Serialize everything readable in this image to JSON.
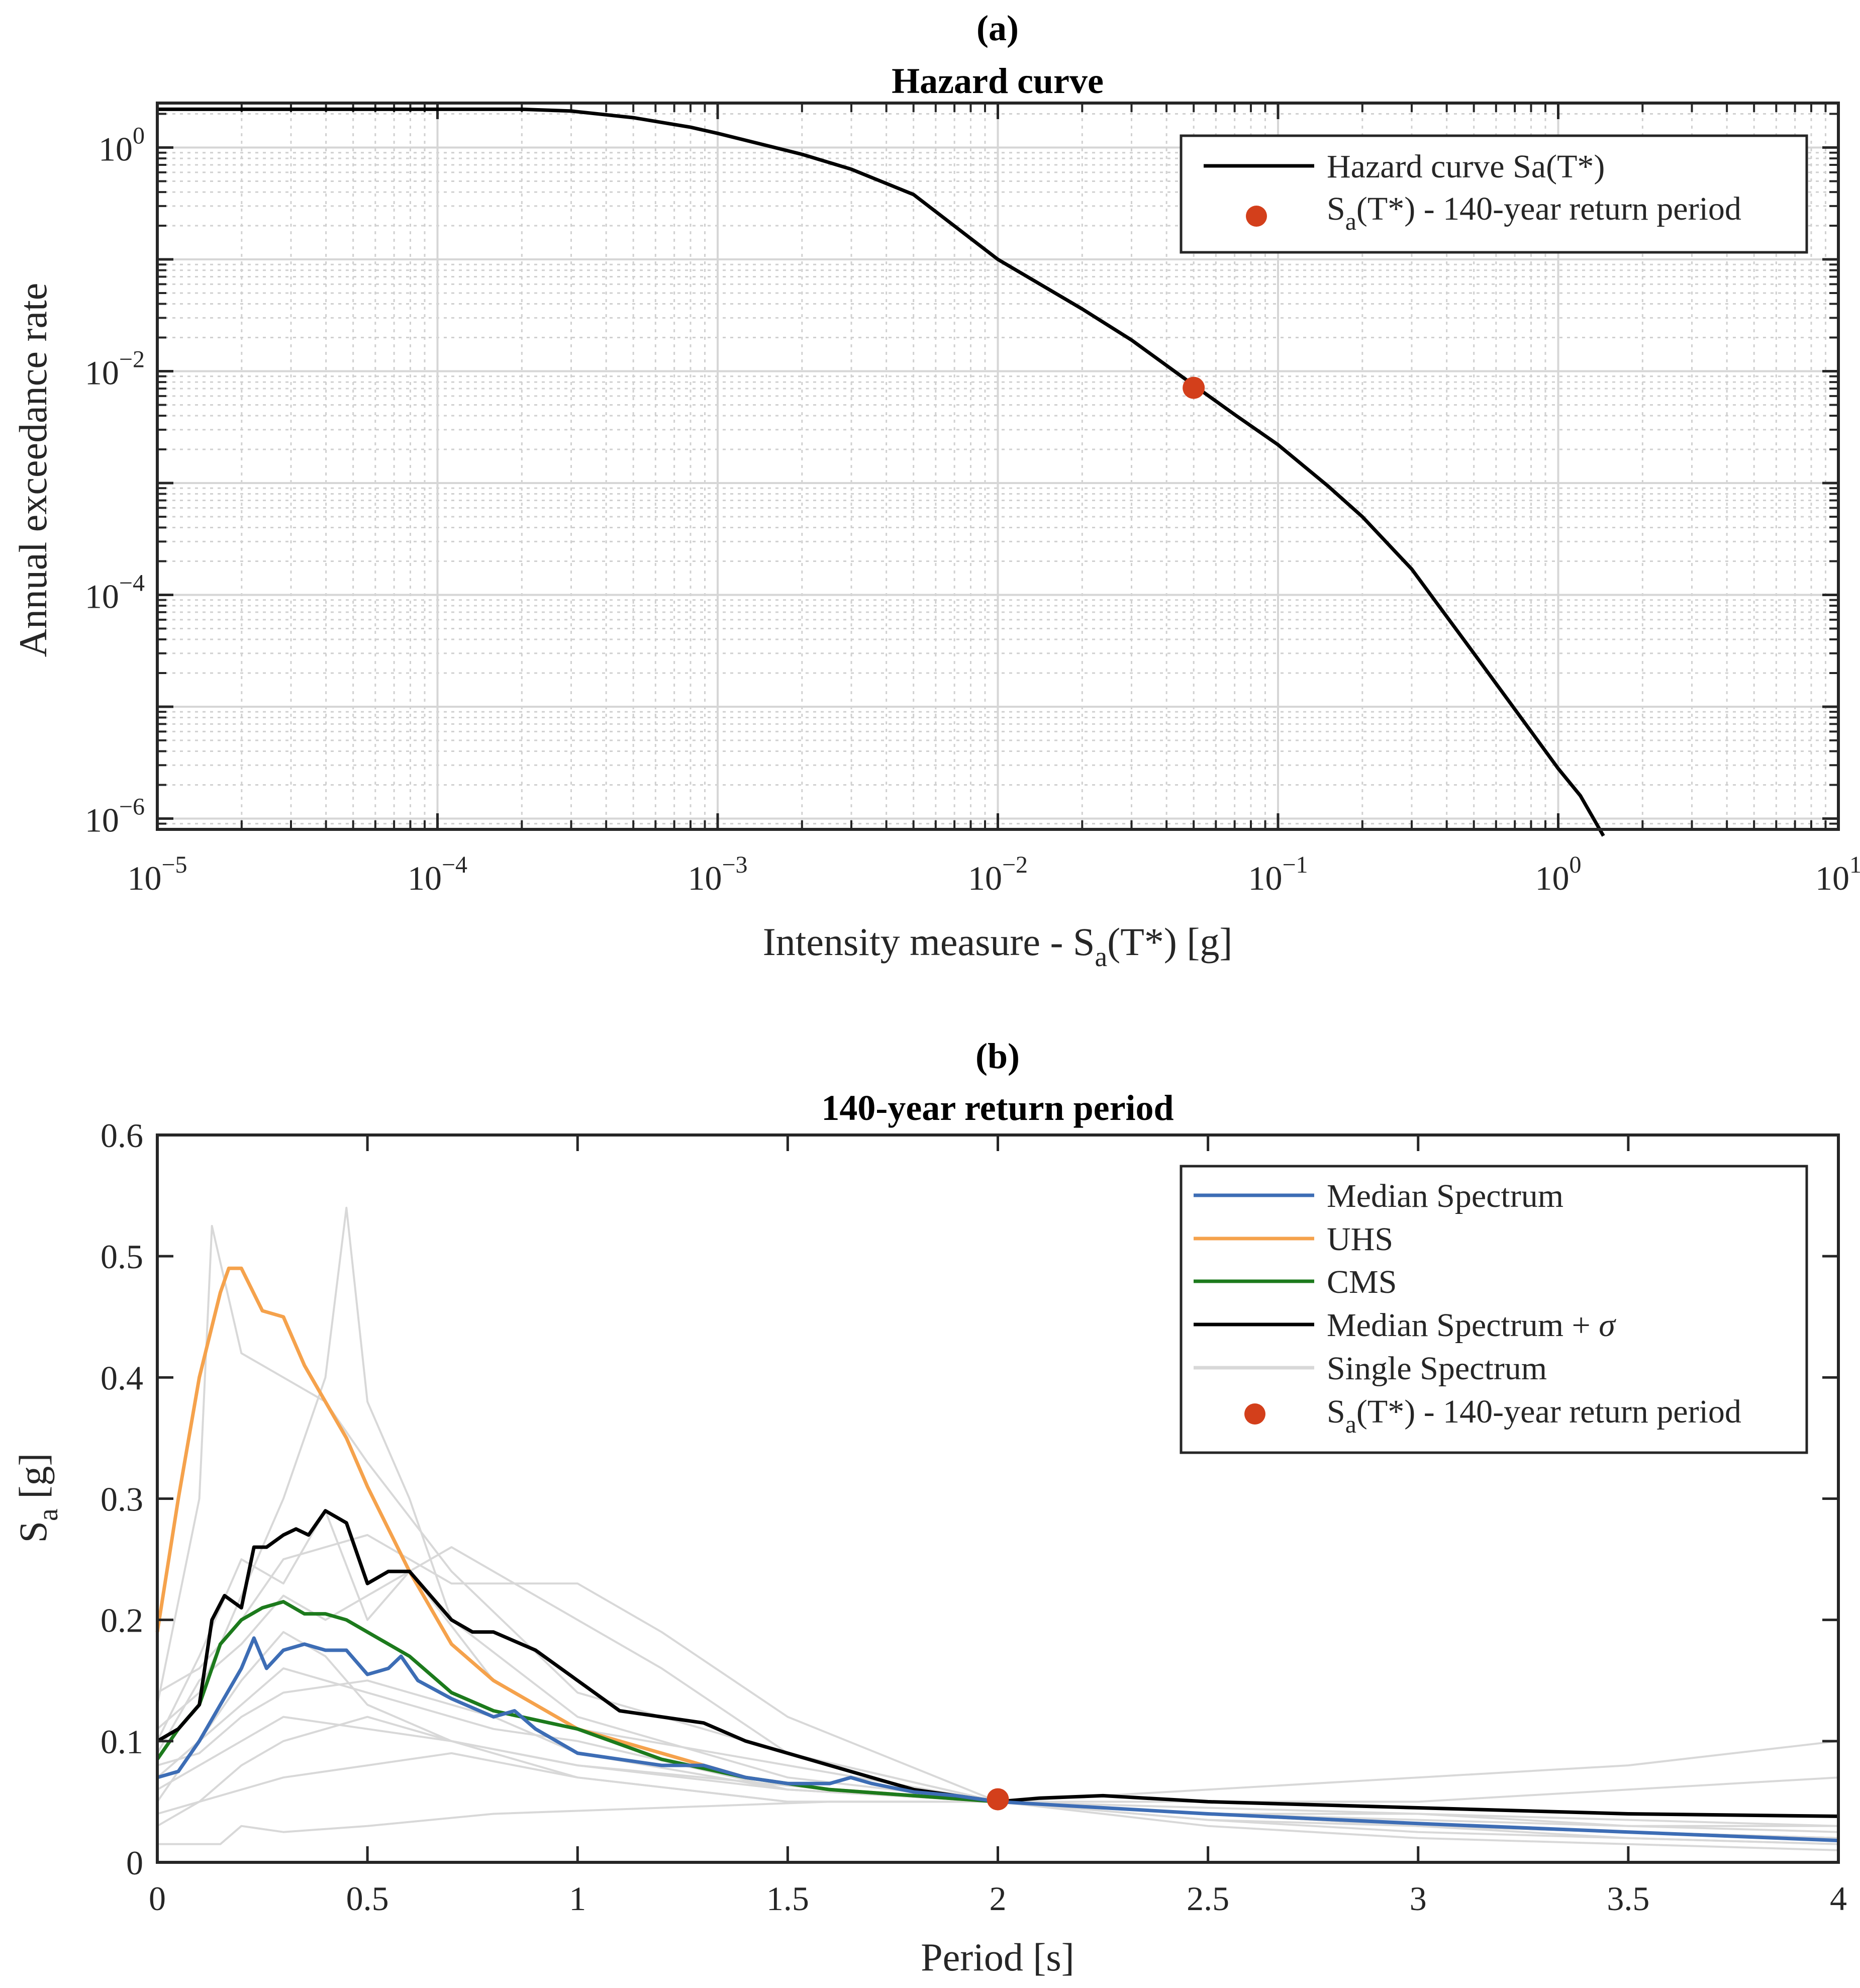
{
  "chart_data": [
    {
      "panel_tag": "(a)",
      "type": "line",
      "title": "Hazard curve",
      "xscale": "log",
      "yscale": "log",
      "xlim": [
        1e-05,
        10
      ],
      "ylim": [
        8e-07,
        2.5
      ],
      "grid": "major and minor",
      "xlabel": {
        "main": "Intensity measure - S",
        "sub": "a",
        "rest": "(T*) [g]"
      },
      "ylabel": "Annual exceedance rate",
      "xticks": [
        {
          "value": 1e-05,
          "base": "10",
          "exp": "−5"
        },
        {
          "value": 0.0001,
          "base": "10",
          "exp": "−4"
        },
        {
          "value": 0.001,
          "base": "10",
          "exp": "−3"
        },
        {
          "value": 0.01,
          "base": "10",
          "exp": "−2"
        },
        {
          "value": 0.1,
          "base": "10",
          "exp": "−1"
        },
        {
          "value": 1,
          "base": "10",
          "exp": "0"
        },
        {
          "value": 10,
          "base": "10",
          "exp": "1"
        }
      ],
      "yticks": [
        {
          "value": 1,
          "base": "10",
          "exp": "0"
        },
        {
          "value": 0.01,
          "base": "10",
          "exp": "−2"
        },
        {
          "value": 0.0001,
          "base": "10",
          "exp": "−4"
        },
        {
          "value": 1e-06,
          "base": "10",
          "exp": "−6"
        }
      ],
      "series": [
        {
          "name": "Hazard curve Sa(T*)",
          "color": "#000000",
          "x": [
            1e-05,
            3e-05,
            0.0001,
            0.0002,
            0.0003,
            0.0005,
            0.0008,
            0.001,
            0.002,
            0.003,
            0.005,
            0.01,
            0.02,
            0.03,
            0.05,
            0.07,
            0.1,
            0.15,
            0.2,
            0.3,
            0.5,
            0.7,
            1.0,
            1.2,
            1.45
          ],
          "y": [
            2.2,
            2.2,
            2.2,
            2.2,
            2.12,
            1.85,
            1.52,
            1.34,
            0.87,
            0.64,
            0.38,
            0.1,
            0.036,
            0.019,
            0.0075,
            0.0041,
            0.0022,
            0.00095,
            0.0005,
            0.00017,
            3e-05,
            9.5e-06,
            2.8e-06,
            1.6e-06,
            7e-07
          ]
        }
      ],
      "points": [
        {
          "name": "S_a(T*) - 140-year return period",
          "x": 0.05,
          "y": 0.0071,
          "color": "#d33f1b"
        }
      ],
      "legend": {
        "position": "top-right",
        "entries": [
          {
            "kind": "line",
            "color": "#000000",
            "text": "Hazard curve Sa(T*)"
          },
          {
            "kind": "marker",
            "color": "#d33f1b",
            "main": "S",
            "sub": "a",
            "rest": "(T*) - 140-year return period"
          }
        ]
      }
    },
    {
      "panel_tag": "(b)",
      "type": "line",
      "title": "140-year return period",
      "xlim": [
        0,
        4
      ],
      "ylim": [
        0,
        0.6
      ],
      "grid": "off",
      "xlabel": "Period [s]",
      "ylabel": {
        "main": "S",
        "sub": "a",
        "rest": " [g]"
      },
      "xticks": [
        {
          "value": 0,
          "label": "0"
        },
        {
          "value": 0.5,
          "label": "0.5"
        },
        {
          "value": 1,
          "label": "1"
        },
        {
          "value": 1.5,
          "label": "1.5"
        },
        {
          "value": 2,
          "label": "2"
        },
        {
          "value": 2.5,
          "label": "2.5"
        },
        {
          "value": 3,
          "label": "3"
        },
        {
          "value": 3.5,
          "label": "3.5"
        },
        {
          "value": 4,
          "label": "4"
        }
      ],
      "yticks": [
        {
          "value": 0,
          "label": "0"
        },
        {
          "value": 0.1,
          "label": "0.1"
        },
        {
          "value": 0.2,
          "label": "0.2"
        },
        {
          "value": 0.3,
          "label": "0.3"
        },
        {
          "value": 0.4,
          "label": "0.4"
        },
        {
          "value": 0.5,
          "label": "0.5"
        },
        {
          "value": 0.6,
          "label": "0.6"
        }
      ],
      "single_spectra": [
        {
          "x": [
            0,
            0.1,
            0.13,
            0.2,
            0.3,
            0.4,
            0.5,
            0.7,
            1.0,
            1.5,
            2.0,
            2.5,
            3.0,
            3.5,
            4.0
          ],
          "y": [
            0.13,
            0.3,
            0.525,
            0.42,
            0.4,
            0.38,
            0.33,
            0.24,
            0.14,
            0.09,
            0.05,
            0.04,
            0.03,
            0.025,
            0.02
          ]
        },
        {
          "x": [
            0,
            0.1,
            0.2,
            0.3,
            0.4,
            0.45,
            0.5,
            0.6,
            0.7,
            1.0,
            1.5,
            2.0,
            2.5,
            3.0,
            3.5,
            4.0
          ],
          "y": [
            0.11,
            0.14,
            0.22,
            0.3,
            0.4,
            0.54,
            0.38,
            0.3,
            0.2,
            0.12,
            0.07,
            0.05,
            0.06,
            0.07,
            0.08,
            0.1
          ]
        },
        {
          "x": [
            0,
            0.1,
            0.2,
            0.3,
            0.5,
            0.7,
            1.0,
            1.2,
            1.5,
            2.0,
            2.5,
            3.0,
            3.5,
            4.0
          ],
          "y": [
            0.14,
            0.16,
            0.2,
            0.25,
            0.27,
            0.23,
            0.23,
            0.19,
            0.12,
            0.05,
            0.05,
            0.05,
            0.06,
            0.07
          ]
        },
        {
          "x": [
            0,
            0.1,
            0.2,
            0.3,
            0.4,
            0.5,
            0.7,
            0.9,
            1.2,
            1.5,
            2.0,
            2.5,
            3.0,
            3.5,
            4.0
          ],
          "y": [
            0.09,
            0.15,
            0.18,
            0.22,
            0.2,
            0.22,
            0.26,
            0.22,
            0.16,
            0.09,
            0.05,
            0.04,
            0.04,
            0.03,
            0.03
          ]
        },
        {
          "x": [
            0,
            0.1,
            0.2,
            0.3,
            0.5,
            0.8,
            1.0,
            1.5,
            2.0,
            2.5,
            3.0,
            3.5,
            4.0
          ],
          "y": [
            0.08,
            0.09,
            0.12,
            0.14,
            0.15,
            0.12,
            0.09,
            0.06,
            0.05,
            0.035,
            0.03,
            0.025,
            0.02
          ]
        },
        {
          "x": [
            0,
            0.1,
            0.2,
            0.3,
            0.5,
            0.7,
            1.0,
            1.3,
            1.6,
            2.0,
            2.5,
            3.0,
            3.5,
            4.0
          ],
          "y": [
            0.06,
            0.08,
            0.1,
            0.12,
            0.11,
            0.1,
            0.08,
            0.07,
            0.06,
            0.05,
            0.04,
            0.03,
            0.02,
            0.015
          ]
        },
        {
          "x": [
            0,
            0.1,
            0.2,
            0.3,
            0.5,
            0.7,
            1.0,
            1.5,
            2.0,
            2.5,
            3.0,
            3.5,
            4.0
          ],
          "y": [
            0.04,
            0.05,
            0.06,
            0.07,
            0.08,
            0.09,
            0.07,
            0.05,
            0.05,
            0.03,
            0.02,
            0.015,
            0.01
          ]
        },
        {
          "x": [
            0,
            0.15,
            0.2,
            0.3,
            0.5,
            0.8,
            1.2,
            1.6,
            2.0,
            2.5,
            3.0,
            3.5,
            4.0
          ],
          "y": [
            0.015,
            0.015,
            0.03,
            0.025,
            0.03,
            0.04,
            0.045,
            0.05,
            0.05,
            0.04,
            0.03,
            0.025,
            0.02
          ]
        },
        {
          "x": [
            0,
            0.1,
            0.2,
            0.3,
            0.4,
            0.5,
            0.7,
            1.0,
            1.5,
            2.0,
            2.5,
            3.0,
            3.5,
            4.0
          ],
          "y": [
            0.05,
            0.1,
            0.15,
            0.19,
            0.17,
            0.13,
            0.1,
            0.07,
            0.05,
            0.05,
            0.035,
            0.025,
            0.02,
            0.015
          ]
        },
        {
          "x": [
            0,
            0.1,
            0.2,
            0.3,
            0.4,
            0.5,
            0.6,
            0.8,
            1.0,
            1.5,
            2.0,
            2.5,
            3.0,
            3.5,
            4.0
          ],
          "y": [
            0.1,
            0.17,
            0.25,
            0.23,
            0.29,
            0.2,
            0.24,
            0.15,
            0.11,
            0.08,
            0.05,
            0.04,
            0.03,
            0.025,
            0.02
          ]
        },
        {
          "x": [
            0,
            0.1,
            0.2,
            0.3,
            0.5,
            0.8,
            1.0,
            1.5,
            2.0,
            2.5,
            3.0,
            3.5,
            4.0
          ],
          "y": [
            0.07,
            0.1,
            0.13,
            0.16,
            0.14,
            0.11,
            0.1,
            0.06,
            0.05,
            0.045,
            0.04,
            0.035,
            0.03
          ]
        },
        {
          "x": [
            0,
            0.1,
            0.2,
            0.3,
            0.5,
            0.7,
            1.0,
            1.5,
            2.0,
            2.5,
            3.0,
            3.5,
            4.0
          ],
          "y": [
            0.03,
            0.05,
            0.08,
            0.1,
            0.12,
            0.1,
            0.08,
            0.06,
            0.05,
            0.04,
            0.035,
            0.03,
            0.025
          ]
        }
      ],
      "series": [
        {
          "name": "Median Spectrum",
          "color": "#3d6db5",
          "x": [
            0,
            0.05,
            0.1,
            0.15,
            0.2,
            0.23,
            0.26,
            0.3,
            0.35,
            0.4,
            0.45,
            0.5,
            0.55,
            0.58,
            0.62,
            0.7,
            0.8,
            0.85,
            0.9,
            1.0,
            1.1,
            1.2,
            1.3,
            1.4,
            1.5,
            1.6,
            1.65,
            1.7,
            1.8,
            1.9,
            2.0,
            2.5,
            3.0,
            3.5,
            4.0
          ],
          "y": [
            0.07,
            0.075,
            0.1,
            0.13,
            0.16,
            0.185,
            0.16,
            0.175,
            0.18,
            0.175,
            0.175,
            0.155,
            0.16,
            0.17,
            0.15,
            0.135,
            0.12,
            0.125,
            0.11,
            0.09,
            0.085,
            0.08,
            0.08,
            0.07,
            0.065,
            0.065,
            0.07,
            0.065,
            0.058,
            0.055,
            0.05,
            0.04,
            0.032,
            0.025,
            0.018
          ]
        },
        {
          "name": "UHS",
          "color": "#f5a24c",
          "x": [
            0,
            0.05,
            0.1,
            0.15,
            0.17,
            0.2,
            0.25,
            0.3,
            0.35,
            0.4,
            0.45,
            0.5,
            0.6,
            0.7,
            0.8,
            0.9,
            1.0,
            1.2,
            1.4,
            1.6,
            1.8,
            2.0
          ],
          "y": [
            0.19,
            0.3,
            0.4,
            0.47,
            0.49,
            0.49,
            0.455,
            0.45,
            0.41,
            0.38,
            0.35,
            0.31,
            0.24,
            0.18,
            0.15,
            0.13,
            0.11,
            0.09,
            0.07,
            0.06,
            0.055,
            0.05
          ]
        },
        {
          "name": "CMS",
          "color": "#1c7a1c",
          "x": [
            0,
            0.05,
            0.1,
            0.15,
            0.2,
            0.25,
            0.3,
            0.35,
            0.4,
            0.45,
            0.5,
            0.6,
            0.7,
            0.8,
            1.0,
            1.2,
            1.4,
            1.6,
            1.8,
            2.0
          ],
          "y": [
            0.085,
            0.11,
            0.13,
            0.18,
            0.2,
            0.21,
            0.215,
            0.205,
            0.205,
            0.2,
            0.19,
            0.17,
            0.14,
            0.125,
            0.11,
            0.085,
            0.07,
            0.06,
            0.055,
            0.05
          ]
        },
        {
          "name": "Median Spectrum + σ",
          "color": "#000000",
          "x": [
            0,
            0.05,
            0.1,
            0.13,
            0.16,
            0.2,
            0.23,
            0.26,
            0.3,
            0.33,
            0.36,
            0.4,
            0.45,
            0.5,
            0.55,
            0.6,
            0.7,
            0.75,
            0.8,
            0.9,
            1.0,
            1.1,
            1.2,
            1.3,
            1.4,
            1.5,
            1.6,
            1.7,
            1.8,
            1.9,
            2.0,
            2.1,
            2.25,
            2.5,
            3.0,
            3.5,
            4.0
          ],
          "y": [
            0.1,
            0.11,
            0.13,
            0.2,
            0.22,
            0.21,
            0.26,
            0.26,
            0.27,
            0.275,
            0.27,
            0.29,
            0.28,
            0.23,
            0.24,
            0.24,
            0.2,
            0.19,
            0.19,
            0.175,
            0.15,
            0.125,
            0.12,
            0.115,
            0.1,
            0.09,
            0.08,
            0.07,
            0.06,
            0.055,
            0.05,
            0.053,
            0.055,
            0.05,
            0.045,
            0.04,
            0.038
          ]
        }
      ],
      "points": [
        {
          "name": "S_a(T*) - 140-year return period",
          "x": 2,
          "y": 0.052,
          "color": "#d33f1b"
        }
      ],
      "legend": {
        "position": "top-right",
        "entries": [
          {
            "kind": "line",
            "color": "#3d6db5",
            "text": "Median Spectrum"
          },
          {
            "kind": "line",
            "color": "#f5a24c",
            "text": "UHS"
          },
          {
            "kind": "line",
            "color": "#1c7a1c",
            "text": "CMS"
          },
          {
            "kind": "line",
            "color": "#000000",
            "text": "Median Spectrum + ",
            "sigma": "σ"
          },
          {
            "kind": "line",
            "color": "#d8d8d8",
            "text": "Single Spectrum"
          },
          {
            "kind": "marker",
            "color": "#d33f1b",
            "main": "S",
            "sub": "a",
            "rest": "(T*) - 140-year return period"
          }
        ]
      }
    }
  ]
}
